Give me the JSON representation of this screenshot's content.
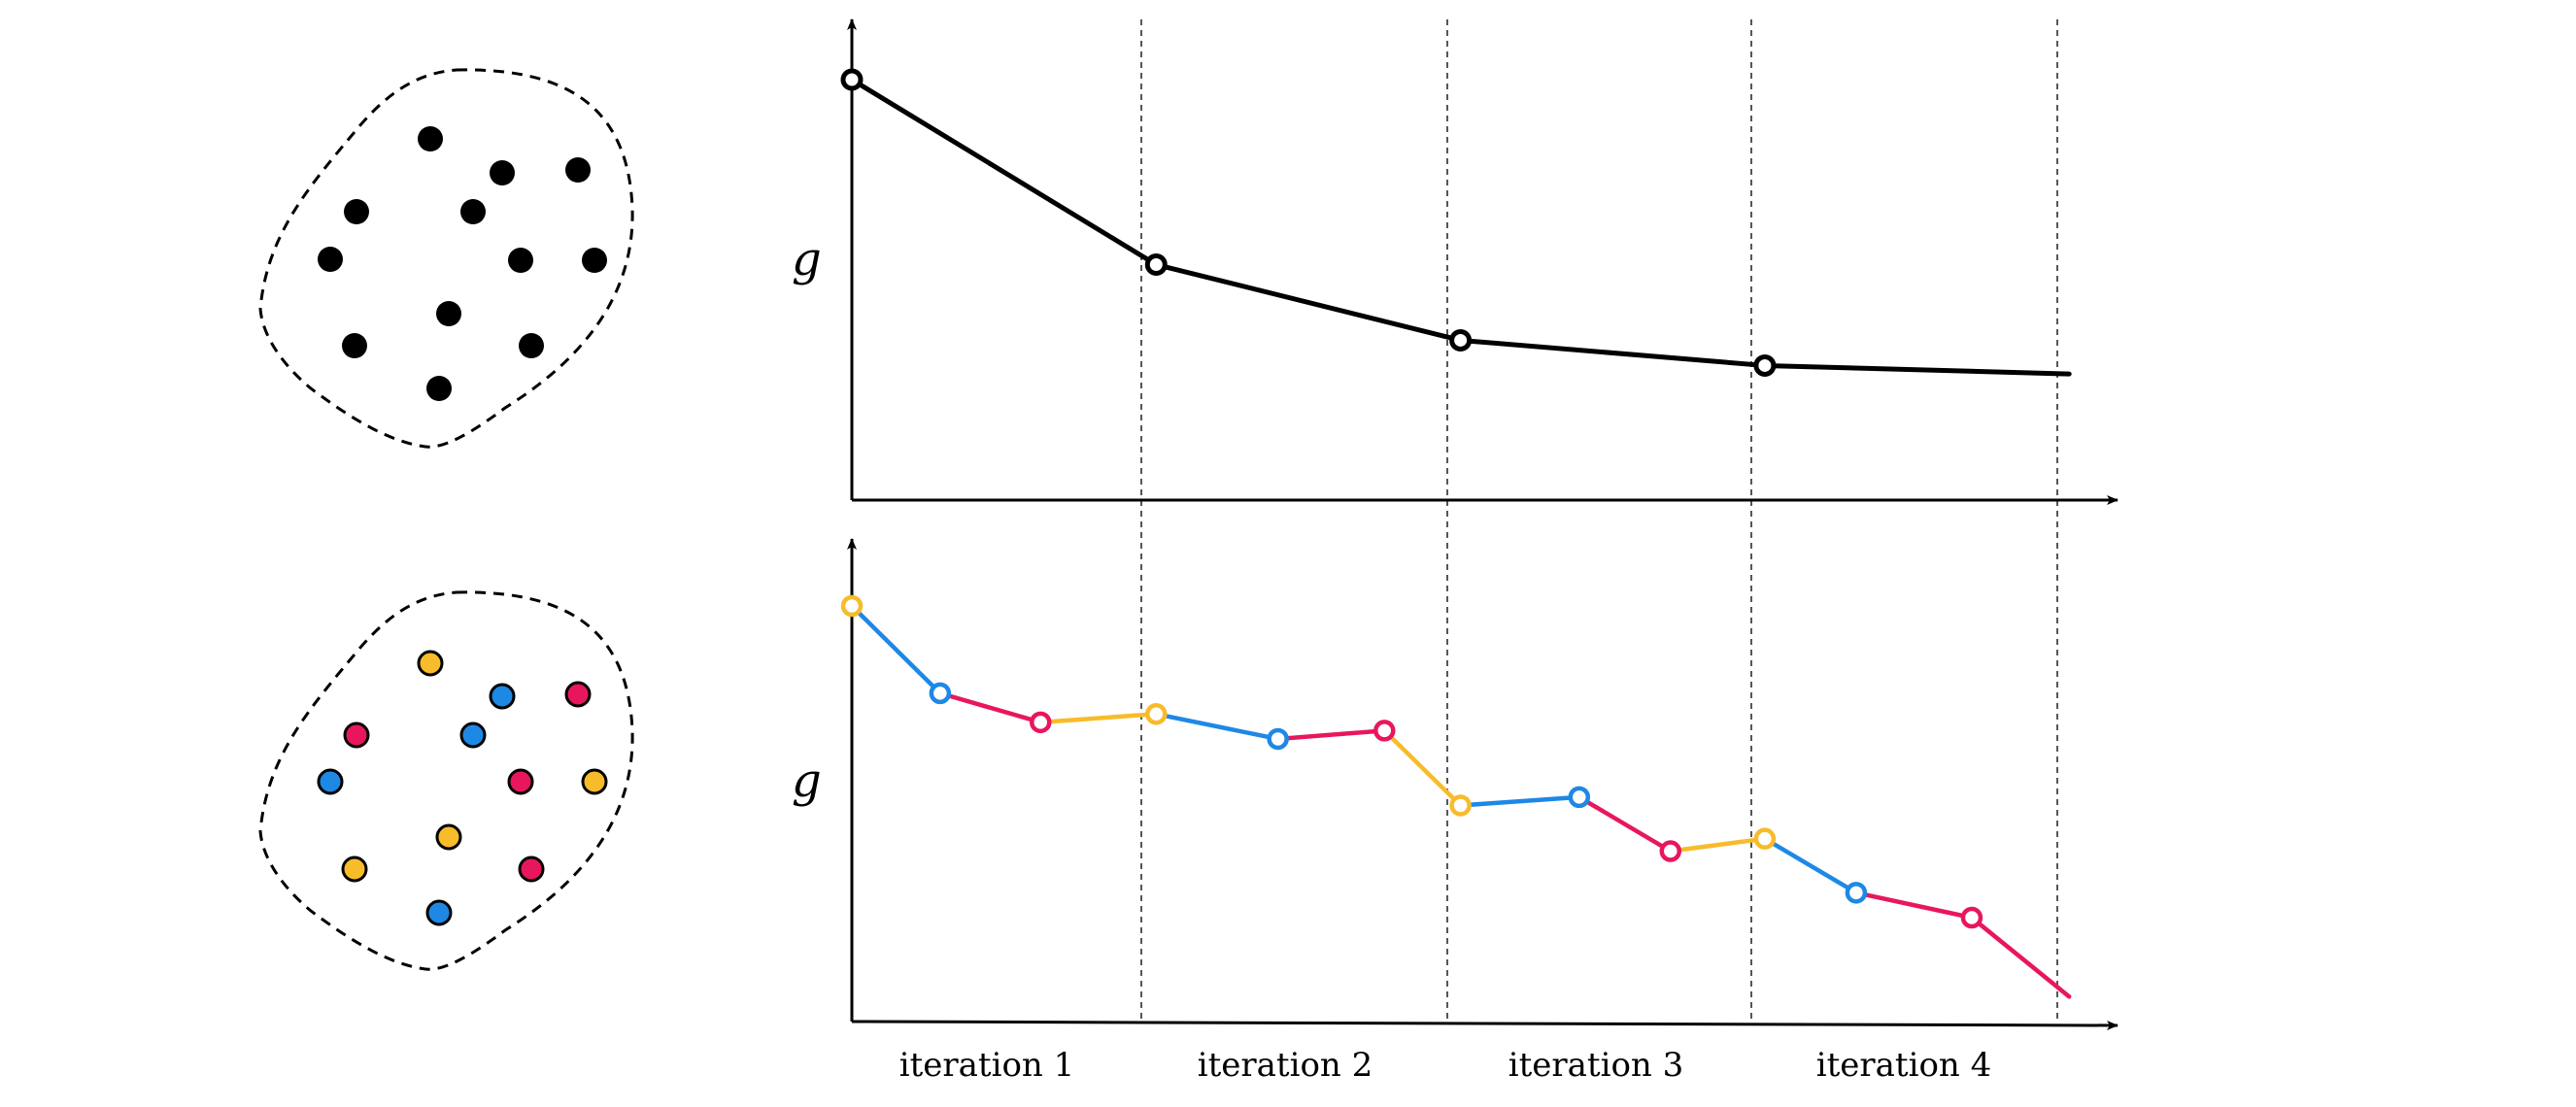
{
  "colors": {
    "black": "#000000",
    "yellow": "#F8BB2A",
    "blue": "#1E88E5",
    "pink": "#E8175D"
  },
  "top_panel": {
    "y_label": "g",
    "point_color": "black",
    "cloud_points": [
      "black",
      "black",
      "black",
      "black",
      "black",
      "black",
      "black",
      "black",
      "black",
      "black",
      "black",
      "black"
    ]
  },
  "bottom_panel": {
    "y_label": "g",
    "cloud_points": [
      "yellow",
      "pink",
      "blue",
      "pink",
      "blue",
      "blue",
      "pink",
      "yellow",
      "yellow",
      "yellow",
      "pink",
      "blue"
    ]
  },
  "x_labels": [
    "iteration 1",
    "iteration 2",
    "iteration 3",
    "iteration 4"
  ],
  "chart_data": [
    {
      "type": "line",
      "name": "top",
      "x": [
        0,
        1,
        2,
        3,
        4
      ],
      "y": [
        1.0,
        0.56,
        0.38,
        0.32,
        0.3
      ],
      "markers": [
        true,
        true,
        true,
        true,
        false
      ],
      "colors": [
        "black",
        "black",
        "black",
        "black",
        "black"
      ]
    },
    {
      "type": "line",
      "name": "bottom",
      "x": [
        0,
        0.29,
        0.62,
        1.0,
        1.4,
        1.75,
        2.0,
        2.39,
        2.69,
        3.0,
        3.3,
        3.68,
        4.0
      ],
      "y": [
        1.0,
        0.79,
        0.72,
        0.74,
        0.68,
        0.7,
        0.52,
        0.54,
        0.41,
        0.44,
        0.31,
        0.25,
        0.06
      ],
      "markers": [
        true,
        true,
        true,
        true,
        true,
        true,
        true,
        true,
        true,
        true,
        true,
        true,
        false
      ],
      "colors": [
        "yellow",
        "blue",
        "pink",
        "yellow",
        "blue",
        "pink",
        "yellow",
        "blue",
        "pink",
        "yellow",
        "blue",
        "pink",
        "pink"
      ]
    }
  ]
}
